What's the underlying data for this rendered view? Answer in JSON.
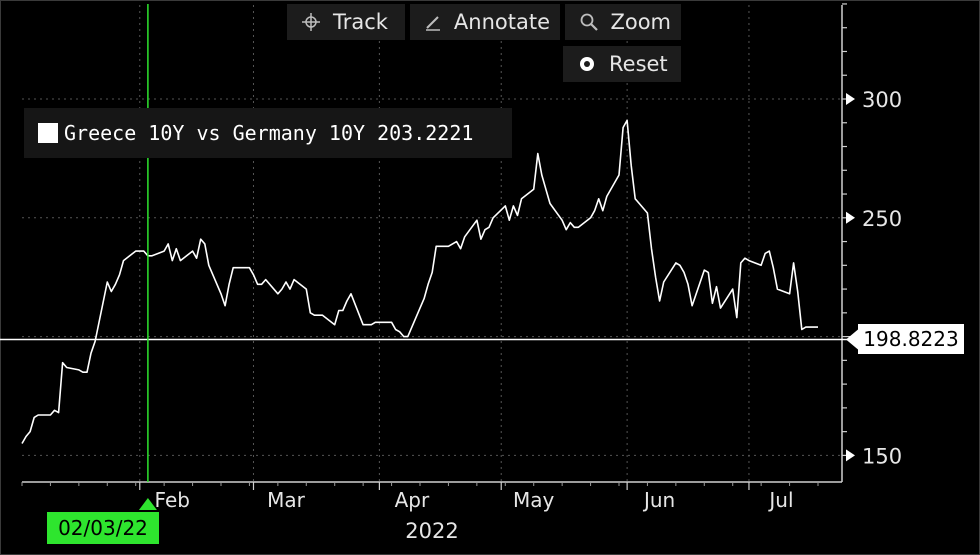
{
  "toolbar": {
    "track_label": "Track",
    "annotate_label": "Annotate",
    "zoom_label": "Zoom",
    "reset_label": "Reset"
  },
  "legend": {
    "series_name": "Greece 10Y vs Germany 10Y",
    "series_value": "203.2221"
  },
  "last_value_label": "198.8223",
  "cursor_date_label": "02/03/22",
  "colors": {
    "background": "#000000",
    "series": "#ffffff",
    "cursor": "#2ee52e",
    "grid": "#555555"
  },
  "chart_data": {
    "type": "line",
    "title": "",
    "xlabel": "2022",
    "ylabel": "",
    "x_tick_labels": [
      "Feb",
      "Mar",
      "Apr",
      "May",
      "Jun",
      "Jul"
    ],
    "y_ticks": [
      150,
      200,
      250,
      300
    ],
    "y_tick_labels": [
      "150",
      "",
      "250",
      "300"
    ],
    "ylim": [
      138,
      340
    ],
    "grid": true,
    "legend_position": "top-left",
    "cursor_x": "2022-02-03",
    "reference_value": 198.8,
    "series": [
      {
        "name": "Greece 10Y vs Germany 10Y",
        "x": [
          "2022-01-03",
          "2022-01-04",
          "2022-01-05",
          "2022-01-06",
          "2022-01-07",
          "2022-01-10",
          "2022-01-11",
          "2022-01-12",
          "2022-01-13",
          "2022-01-14",
          "2022-01-17",
          "2022-01-18",
          "2022-01-19",
          "2022-01-20",
          "2022-01-21",
          "2022-01-24",
          "2022-01-25",
          "2022-01-26",
          "2022-01-27",
          "2022-01-28",
          "2022-01-31",
          "2022-02-01",
          "2022-02-02",
          "2022-02-03",
          "2022-02-04",
          "2022-02-07",
          "2022-02-08",
          "2022-02-09",
          "2022-02-10",
          "2022-02-11",
          "2022-02-14",
          "2022-02-15",
          "2022-02-16",
          "2022-02-17",
          "2022-02-18",
          "2022-02-21",
          "2022-02-22",
          "2022-02-23",
          "2022-02-24",
          "2022-02-25",
          "2022-02-28",
          "2022-03-01",
          "2022-03-02",
          "2022-03-03",
          "2022-03-04",
          "2022-03-07",
          "2022-03-08",
          "2022-03-09",
          "2022-03-10",
          "2022-03-11",
          "2022-03-14",
          "2022-03-15",
          "2022-03-16",
          "2022-03-17",
          "2022-03-18",
          "2022-03-21",
          "2022-03-22",
          "2022-03-23",
          "2022-03-24",
          "2022-03-25",
          "2022-03-28",
          "2022-03-29",
          "2022-03-30",
          "2022-03-31",
          "2022-04-01",
          "2022-04-04",
          "2022-04-05",
          "2022-04-06",
          "2022-04-07",
          "2022-04-08",
          "2022-04-11",
          "2022-04-12",
          "2022-04-13",
          "2022-04-14",
          "2022-04-15",
          "2022-04-18",
          "2022-04-19",
          "2022-04-20",
          "2022-04-21",
          "2022-04-22",
          "2022-04-25",
          "2022-04-26",
          "2022-04-27",
          "2022-04-28",
          "2022-04-29",
          "2022-05-02",
          "2022-05-03",
          "2022-05-04",
          "2022-05-05",
          "2022-05-06",
          "2022-05-09",
          "2022-05-10",
          "2022-05-11",
          "2022-05-12",
          "2022-05-13",
          "2022-05-16",
          "2022-05-17",
          "2022-05-18",
          "2022-05-19",
          "2022-05-20",
          "2022-05-23",
          "2022-05-24",
          "2022-05-25",
          "2022-05-26",
          "2022-05-27",
          "2022-05-30",
          "2022-05-31",
          "2022-06-01",
          "2022-06-02",
          "2022-06-03",
          "2022-06-06",
          "2022-06-07",
          "2022-06-08",
          "2022-06-09",
          "2022-06-10",
          "2022-06-13",
          "2022-06-14",
          "2022-06-15",
          "2022-06-16",
          "2022-06-17",
          "2022-06-20",
          "2022-06-21",
          "2022-06-22",
          "2022-06-23",
          "2022-06-24",
          "2022-06-27",
          "2022-06-28",
          "2022-06-29",
          "2022-06-30",
          "2022-07-01",
          "2022-07-04",
          "2022-07-05",
          "2022-07-06",
          "2022-07-07",
          "2022-07-08",
          "2022-07-11",
          "2022-07-12",
          "2022-07-13",
          "2022-07-14",
          "2022-07-15",
          "2022-07-18"
        ],
        "values": [
          155,
          158,
          160,
          166,
          167,
          167,
          169,
          168,
          189,
          187,
          186,
          185,
          185,
          193,
          198,
          223,
          219,
          222,
          226,
          232,
          236,
          236,
          236,
          234,
          234,
          236,
          239,
          232,
          237,
          232,
          236,
          233,
          241,
          239,
          230,
          218,
          213,
          222,
          229,
          229,
          229,
          226,
          222,
          222,
          224,
          218,
          220,
          223,
          220,
          224,
          220,
          210,
          209,
          209,
          209,
          205,
          211,
          211,
          215,
          218,
          205,
          205,
          205,
          206,
          206,
          206,
          203,
          202,
          200,
          200,
          212,
          216,
          222,
          227,
          238,
          238,
          239,
          240,
          237,
          242,
          249,
          241,
          245,
          246,
          250,
          255,
          249,
          255,
          251,
          258,
          262,
          277,
          268,
          262,
          256,
          249,
          245,
          248,
          246,
          246,
          250,
          253,
          258,
          253,
          259,
          268,
          288,
          291,
          272,
          258,
          252,
          237,
          225,
          215,
          223,
          231,
          230,
          227,
          222,
          213,
          228,
          227,
          214,
          221,
          212,
          220,
          208,
          231,
          233,
          232,
          230,
          235,
          236,
          229,
          220,
          218,
          231,
          219,
          203,
          204,
          204
        ]
      }
    ]
  }
}
